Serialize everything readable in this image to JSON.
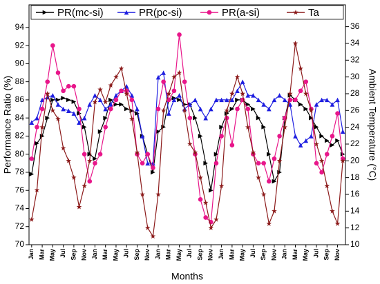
{
  "chart_data": {
    "type": "line",
    "x_label": "Months",
    "y_label": "Performance Ratio (%)",
    "y2_label": "Ambient Temperature (°C)",
    "categories": [
      "Jan",
      null,
      "Mar",
      null,
      "May",
      null,
      "Jul",
      null,
      "Sep",
      null,
      "Nov",
      null,
      "Jan",
      null,
      "Mar",
      null,
      "May",
      null,
      "Jul",
      null,
      "Sep",
      null,
      "Nov",
      null,
      "Jan",
      null,
      "Mar",
      null,
      "May",
      null,
      "Jul",
      null,
      "Sep",
      null,
      "Nov",
      null,
      "Jan",
      null,
      "Mar",
      null,
      "May",
      null,
      "Jul",
      null,
      "Sep",
      null,
      "Nov",
      null,
      "Jan",
      null,
      "Mar",
      null,
      "May",
      null,
      "Jul",
      null,
      "Sep",
      null,
      "Nov",
      null
    ],
    "ylim": [
      70,
      96.5
    ],
    "yticks": [
      70,
      72,
      74,
      76,
      78,
      80,
      82,
      84,
      86,
      88,
      90,
      92,
      94
    ],
    "y2lim": [
      10,
      38.6
    ],
    "y2ticks": [
      10,
      12,
      14,
      16,
      18,
      20,
      22,
      24,
      26,
      28,
      30,
      32,
      34,
      36
    ],
    "series": [
      {
        "name": "PR(mc-si)",
        "color": "#000000",
        "marker": "triangle-right",
        "values": [
          77.8,
          81.2,
          82,
          84,
          86,
          86,
          86.2,
          86,
          85.8,
          84.5,
          83,
          80,
          79.5,
          82.5,
          84,
          86,
          85.5,
          85.5,
          85,
          84.8,
          84.5,
          82,
          80,
          78,
          82.5,
          83,
          86,
          86.2,
          86,
          85.5,
          85.5,
          84,
          82,
          79,
          76,
          80,
          83,
          84.5,
          85,
          86,
          86,
          85.5,
          85,
          84,
          83,
          80,
          77,
          78,
          84,
          86.5,
          86,
          85.5,
          85,
          84,
          83,
          82,
          81.5,
          81,
          81.5,
          80
        ]
      },
      {
        "name": "PR(pc-si)",
        "color": "#1f1fe0",
        "marker": "triangle-up",
        "values": [
          83.5,
          84,
          86,
          86.3,
          86.5,
          85.5,
          85,
          84.8,
          84.5,
          83.5,
          84,
          85.5,
          86.5,
          86,
          85,
          85.5,
          86.5,
          87,
          87.5,
          86.5,
          85,
          82,
          79,
          79,
          88.5,
          89,
          84.5,
          86,
          86.5,
          85,
          85.5,
          86,
          85,
          84,
          85,
          86,
          86,
          86,
          86,
          87,
          88,
          86.5,
          86.5,
          86,
          85.5,
          85,
          86,
          86.5,
          86,
          85.5,
          82,
          81,
          81.5,
          82,
          85.5,
          86,
          86,
          85.5,
          86,
          82.5
        ]
      },
      {
        "name": "PR(a-si)",
        "color": "#e8168a",
        "marker": "circle",
        "values": [
          79.5,
          83,
          85,
          88,
          92,
          89,
          87,
          87.5,
          87.5,
          85,
          80,
          77,
          79,
          80,
          83,
          85,
          86,
          87,
          87,
          86,
          80,
          79,
          80,
          78.5,
          85,
          88,
          86,
          87,
          93.2,
          88,
          84,
          80,
          75,
          73,
          72.5,
          79,
          82,
          84,
          81,
          85,
          86,
          85,
          80,
          79,
          79,
          77,
          79.5,
          82,
          84,
          86,
          86,
          87,
          88,
          85,
          79,
          78,
          80,
          82,
          84.5,
          79.5
        ]
      },
      {
        "name": "Ta",
        "color": "#8b1a1a",
        "marker": "star",
        "axis": "y2",
        "values": [
          13,
          16.5,
          24,
          28,
          26,
          25,
          21.5,
          20,
          18,
          14.5,
          17,
          20,
          27,
          28.5,
          27,
          29,
          30,
          31,
          28,
          25,
          21,
          16,
          12,
          11,
          16,
          26,
          28,
          30,
          30.5,
          26,
          22,
          21,
          18,
          15,
          12,
          13,
          17,
          26,
          28,
          30,
          28,
          24,
          21,
          18,
          16,
          12.5,
          14,
          20,
          24,
          28,
          34,
          31,
          28,
          26,
          22,
          20,
          17,
          14,
          12.5,
          20
        ]
      }
    ]
  }
}
